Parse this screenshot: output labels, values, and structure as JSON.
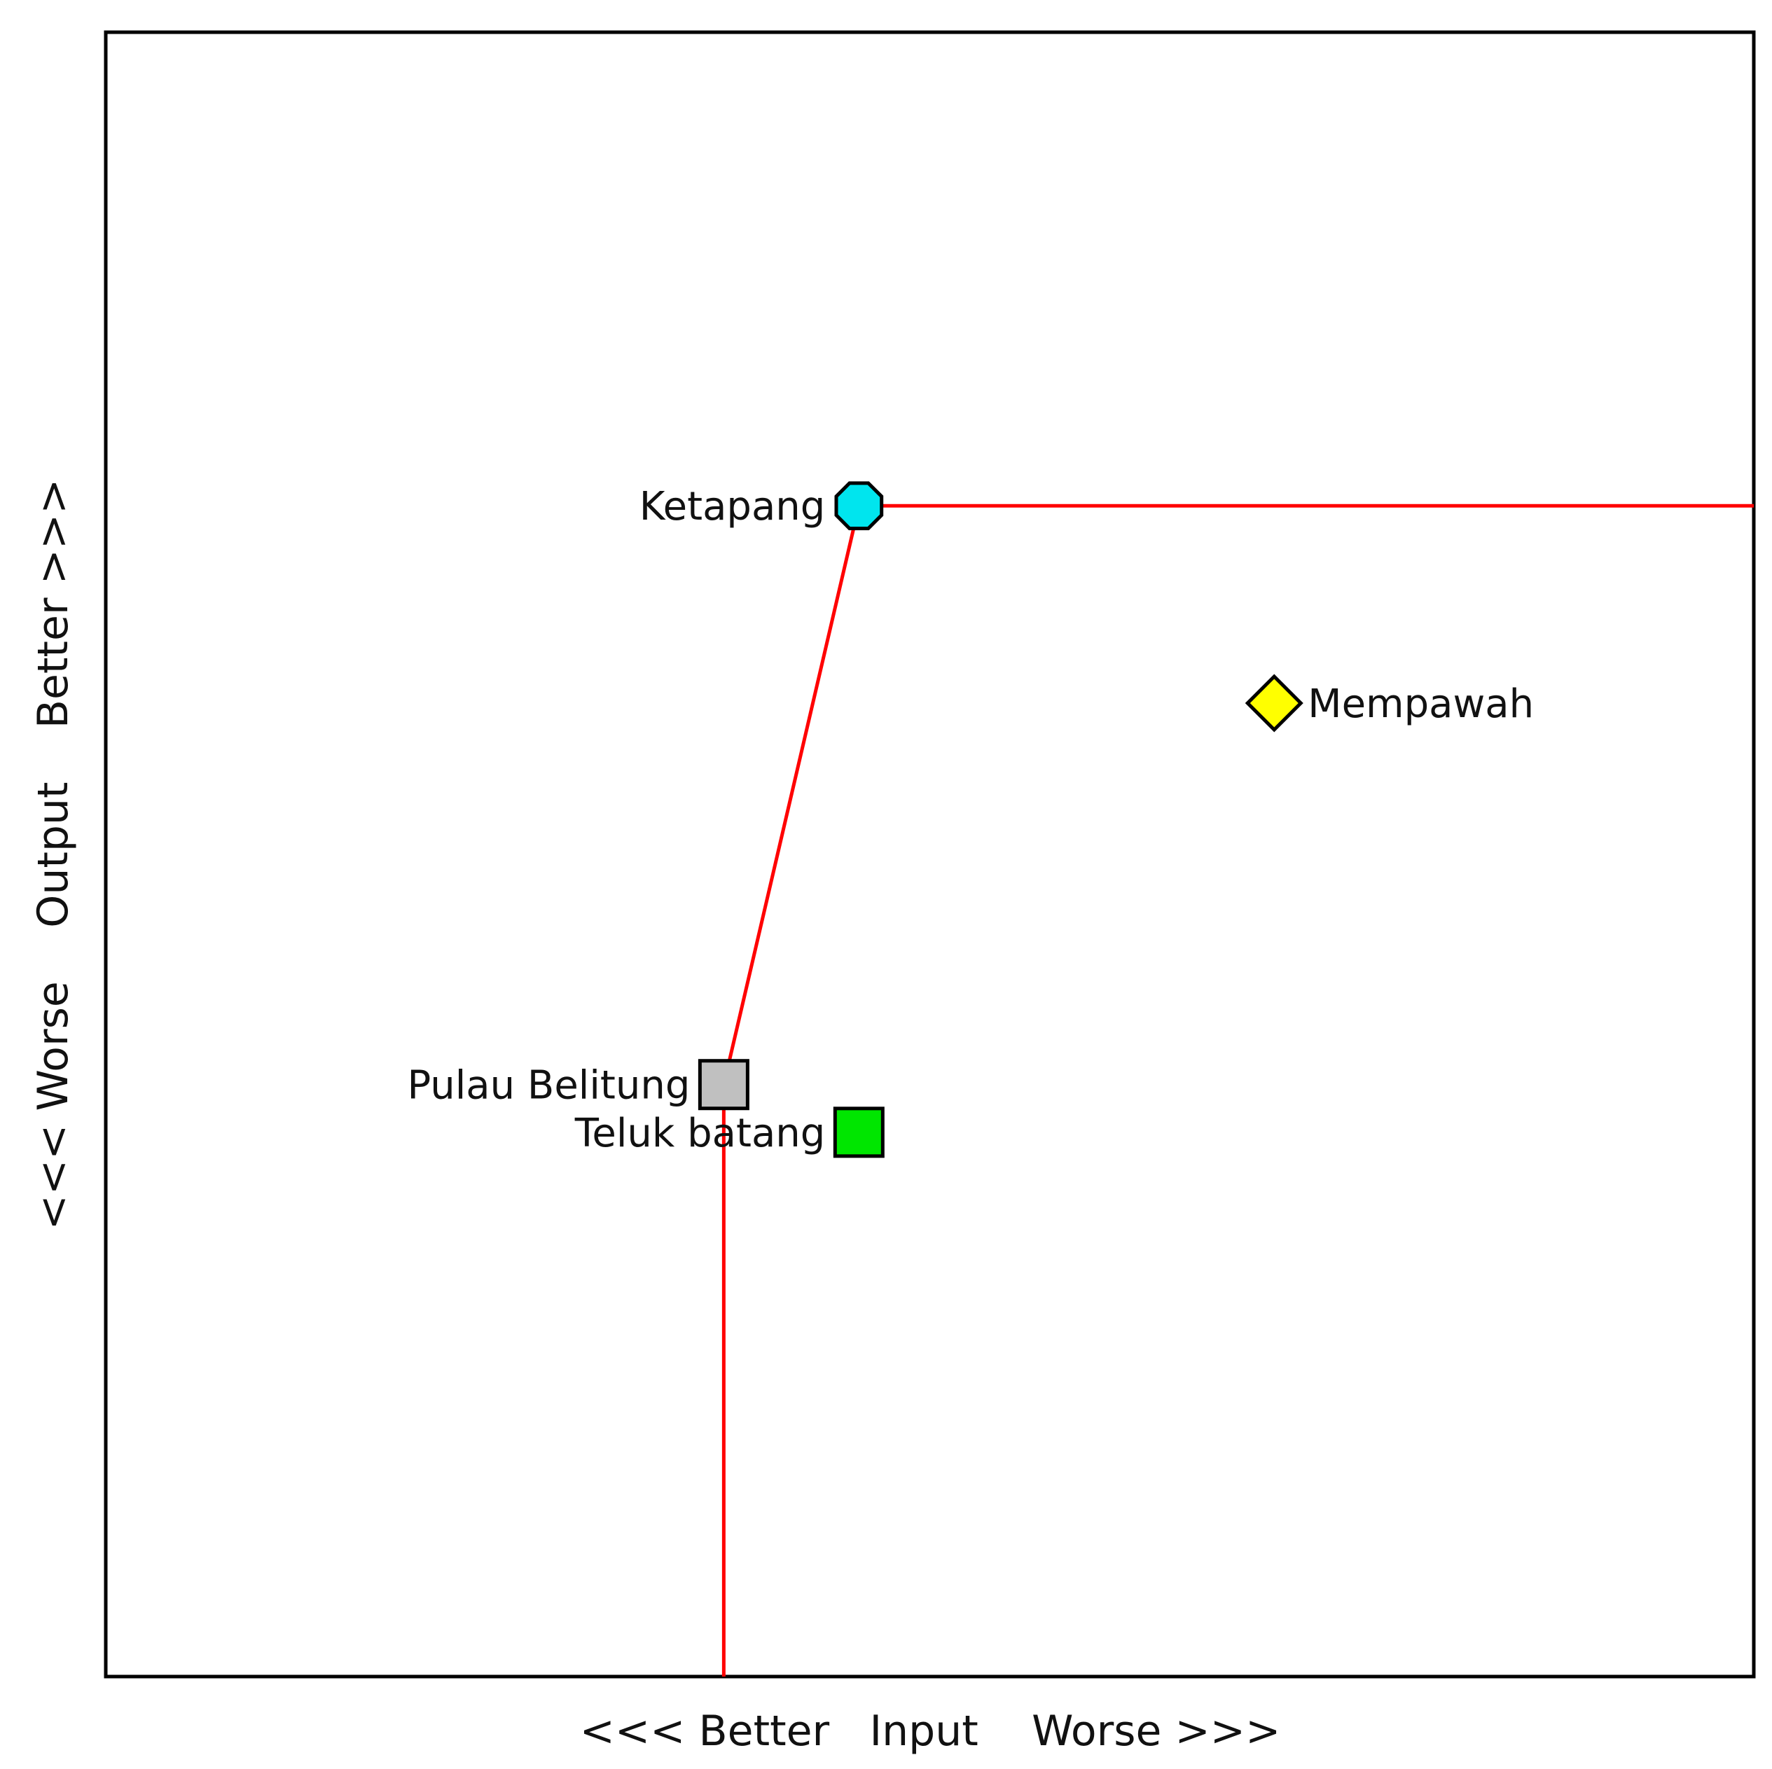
{
  "chart_data": {
    "type": "scatter",
    "title": "",
    "xlabel": "<<< Better   Input    Worse >>>",
    "ylabel": "<<< Worse    Output    Better >>>",
    "xlim": [
      0,
      100
    ],
    "ylim": [
      0,
      100
    ],
    "grid": false,
    "points": [
      {
        "name": "Ketapang",
        "x": 45.7,
        "y": 71.2,
        "shape": "octagon",
        "color": "#00e5ee",
        "label_side": "left"
      },
      {
        "name": "Mempawah",
        "x": 70.9,
        "y": 59.2,
        "shape": "diamond",
        "color": "#ffff00",
        "label_side": "right"
      },
      {
        "name": "Pulau Belitung",
        "x": 37.5,
        "y": 36.0,
        "shape": "square",
        "color": "#c0c0c0",
        "label_side": "left"
      },
      {
        "name": "Teluk batang",
        "x": 45.7,
        "y": 33.1,
        "shape": "square",
        "color": "#00e600",
        "label_side": "left"
      }
    ],
    "frontier": {
      "color": "#ff0000",
      "path": [
        {
          "x": 37.5,
          "y": 0
        },
        {
          "x": 37.5,
          "y": 36.0
        },
        {
          "x": 45.7,
          "y": 71.2
        },
        {
          "x": 100,
          "y": 71.2
        }
      ]
    }
  }
}
